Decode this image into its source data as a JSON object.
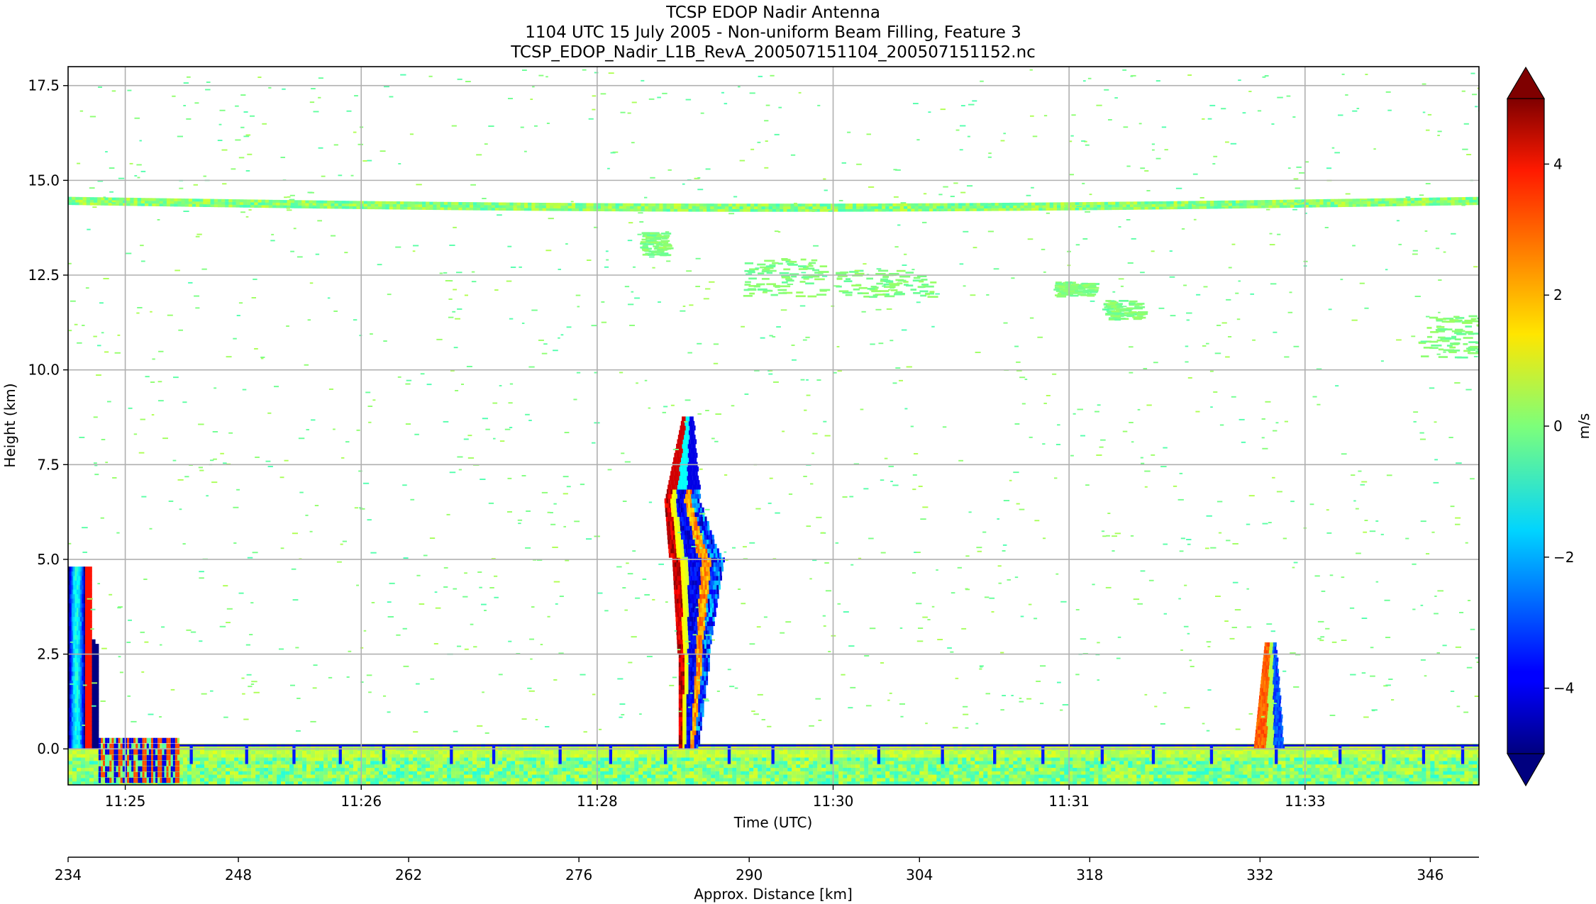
{
  "chart_data": {
    "type": "heatmap",
    "title_lines": [
      "TCSP EDOP Nadir Antenna",
      "1104 UTC 15 July 2005 - Non-uniform Beam Filling, Feature 3",
      "TCSP_EDOP_Nadir_L1B_RevA_200507151104_200507151152.nc"
    ],
    "ylabel": "Height (km)",
    "xlabel": "Time (UTC)",
    "x2label": "Approx. Distance [km]",
    "colorbar_label": "m/s",
    "ylim": [
      -0.95,
      18.0
    ],
    "yticks": [
      {
        "value": 0.0,
        "label": "0.0"
      },
      {
        "value": 2.5,
        "label": "2.5"
      },
      {
        "value": 5.0,
        "label": "5.0"
      },
      {
        "value": 7.5,
        "label": "7.5"
      },
      {
        "value": 10.0,
        "label": "10.0"
      },
      {
        "value": 12.5,
        "label": "12.5"
      },
      {
        "value": 15.0,
        "label": "15.0"
      },
      {
        "value": 17.5,
        "label": "17.5"
      }
    ],
    "distance_range_km": [
      234,
      350
    ],
    "time_ticks": [
      {
        "distance": 238.7,
        "label": "11:25"
      },
      {
        "distance": 258.1,
        "label": "11:26"
      },
      {
        "distance": 277.5,
        "label": "11:28"
      },
      {
        "distance": 296.9,
        "label": "11:30"
      },
      {
        "distance": 316.3,
        "label": "11:31"
      },
      {
        "distance": 335.7,
        "label": "11:33"
      }
    ],
    "distance_ticks": [
      234,
      248,
      262,
      276,
      290,
      304,
      318,
      332,
      346
    ],
    "colorbar": {
      "range": [
        -5,
        5
      ],
      "ticks": [
        -4,
        -2,
        0,
        2,
        4
      ],
      "tick_labels": [
        "−4",
        "−2",
        "0",
        "2",
        "4"
      ],
      "extend": "both",
      "colormap": "jet"
    },
    "features": [
      {
        "name": "surface/ground clutter layer",
        "x_range_km": [
          234,
          350
        ],
        "height_range_km": [
          -0.95,
          0.1
        ],
        "velocity_ms": [
          -1.5,
          1.0
        ]
      },
      {
        "name": "tropopause cirrus layer",
        "x_range_km": [
          234,
          350
        ],
        "height_km": 14.4,
        "velocity_ms": [
          -0.5,
          0.5
        ]
      },
      {
        "name": "left edge convection",
        "x_range_km": [
          234,
          236.5
        ],
        "height_range_km": [
          0,
          4.8
        ],
        "velocity_ms": [
          -5,
          4
        ]
      },
      {
        "name": "main convective column",
        "x_range_km": [
          283,
          289
        ],
        "height_range_km": [
          0,
          8.7
        ],
        "velocity_ms": [
          -5,
          5
        ]
      },
      {
        "name": "shallow convection",
        "x_range_km": [
          331,
          334.5
        ],
        "height_range_km": [
          0,
          2.8
        ],
        "velocity_ms": [
          -4,
          3
        ]
      },
      {
        "name": "mid-level cloud patches",
        "x_range_km": [
          289,
          350
        ],
        "height_range_km": [
          10.3,
          13.0
        ],
        "velocity_ms": [
          -0.5,
          0.5
        ]
      }
    ]
  }
}
